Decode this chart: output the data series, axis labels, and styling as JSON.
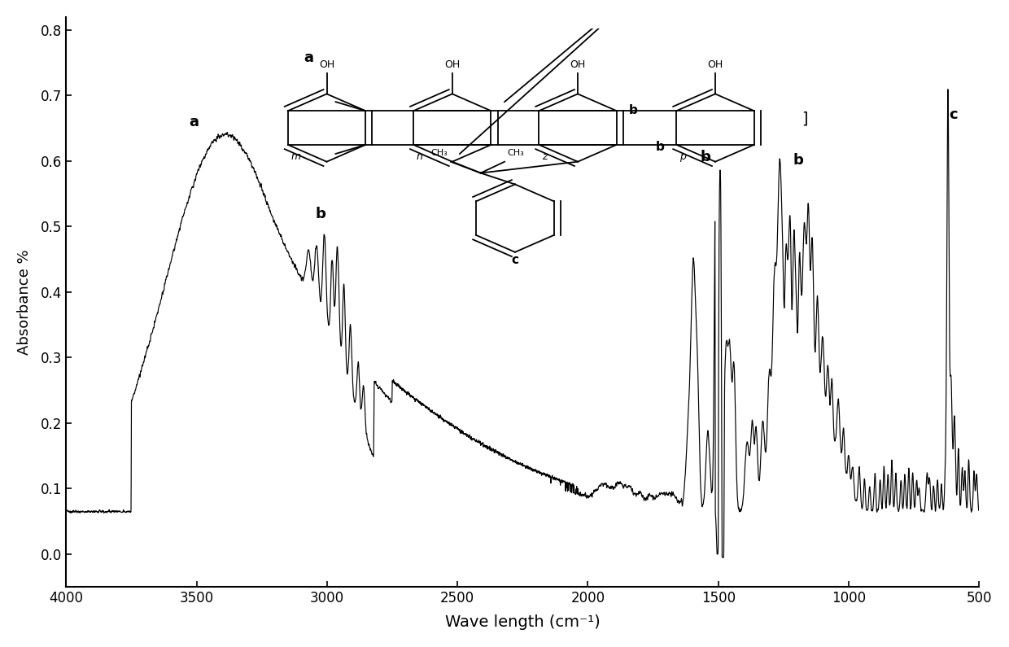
{
  "xlabel": "Wave length (cm⁻¹)",
  "ylabel": "Absorbance %",
  "xlim": [
    4000,
    500
  ],
  "ylim": [
    -0.05,
    0.82
  ],
  "yticks": [
    0.0,
    0.1,
    0.2,
    0.3,
    0.4,
    0.5,
    0.6,
    0.7,
    0.8
  ],
  "xticks": [
    4000,
    3500,
    3000,
    2500,
    2000,
    1500,
    1000,
    500
  ],
  "line_color": "#000000",
  "background_color": "#ffffff"
}
